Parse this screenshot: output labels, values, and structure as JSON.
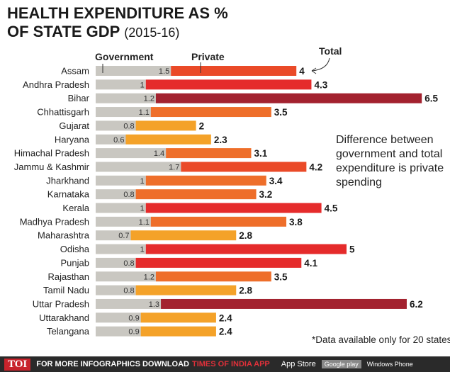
{
  "chart_data": {
    "type": "bar",
    "stacked": true,
    "title": "HEALTH EXPENDITURE AS % OF STATE GDP",
    "subtitle": "(2015-16)",
    "legend": {
      "government": "Government",
      "private": "Private",
      "total": "Total"
    },
    "annotation": "Difference between government and total expenditure is private spending",
    "footnote": "*Data available only for 20 states",
    "colors": {
      "government": "#c9c7c1",
      "dark_red": "#a3222f",
      "red": "#e52b2b",
      "orange_red": "#ea4a28",
      "orange": "#ee6e2a",
      "amber": "#f4a229"
    },
    "categories": [
      "Assam",
      "Andhra Pradesh",
      "Bihar",
      "Chhattisgarh",
      "Gujarat",
      "Haryana",
      "Himachal Pradesh",
      "Jammu &  Kashmir",
      "Jharkhand",
      "Karnataka",
      "Kerala",
      "Madhya Pradesh",
      "Maharashtra",
      "Odisha",
      "Punjab",
      "Rajasthan",
      "Tamil Nadu",
      "Uttar Pradesh",
      "Uttarakhand",
      "Telangana"
    ],
    "government": [
      1.5,
      1,
      1.2,
      1.1,
      0.8,
      0.6,
      1.4,
      1.7,
      1,
      0.8,
      1,
      1.1,
      0.7,
      1,
      0.8,
      1.2,
      0.8,
      1.3,
      0.9,
      0.9
    ],
    "government_labels": [
      "1.5",
      "1",
      "1.2",
      "1.1",
      "0.8",
      "0.6",
      "1.4",
      "1.7",
      "1",
      "0.8",
      "1",
      "1.1",
      "0.7",
      "1",
      "0.8",
      "1.2",
      "0.8",
      "1.3",
      "0.9",
      "0.9"
    ],
    "total": [
      4,
      4.3,
      6.5,
      3.5,
      2,
      2.3,
      3.1,
      4.2,
      3.4,
      3.2,
      4.5,
      3.8,
      2.8,
      5,
      4.1,
      3.5,
      2.8,
      6.2,
      2.4,
      2.4
    ],
    "total_labels": [
      "4",
      "4.3",
      "6.5",
      "3.5",
      "2",
      "2.3",
      "3.1",
      "4.2",
      "3.4",
      "3.2",
      "4.5",
      "3.8",
      "2.8",
      "5",
      "4.1",
      "3.5",
      "2.8",
      "6.2",
      "2.4",
      "2.4"
    ],
    "private_color_keys": [
      "orange_red",
      "red",
      "dark_red",
      "orange",
      "amber",
      "amber",
      "orange",
      "orange_red",
      "orange",
      "orange",
      "red",
      "orange",
      "amber",
      "red",
      "red",
      "orange",
      "amber",
      "dark_red",
      "amber",
      "amber"
    ]
  },
  "footer": {
    "logo": "TOI",
    "text": "FOR MORE  INFOGRAPHICS DOWNLOAD",
    "app": "TIMES OF INDIA  APP",
    "app_store": "App Store",
    "google_play": "Google play",
    "windows": "Windows Phone"
  }
}
